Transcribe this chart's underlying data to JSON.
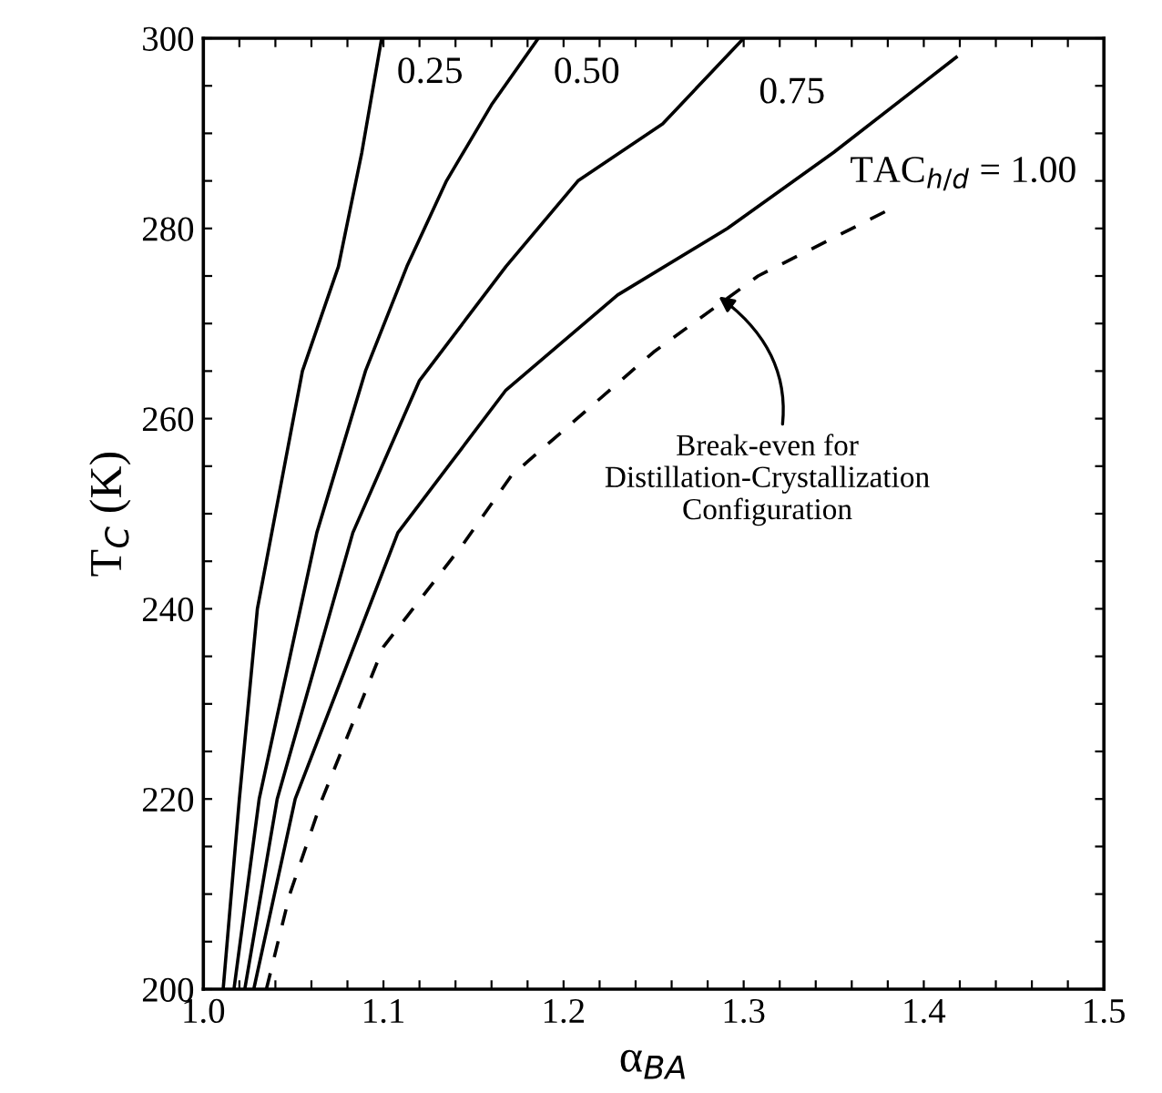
{
  "chart_data": {
    "type": "line",
    "xlabel": "α$_{BA}$",
    "ylabel": "T$_{C}$ (K)",
    "xlim": [
      1.0,
      1.5
    ],
    "ylim": [
      200,
      300
    ],
    "xticks": [
      {
        "value": 1.0,
        "label": "1.0"
      },
      {
        "value": 1.02,
        "label": null
      },
      {
        "value": 1.04,
        "label": null
      },
      {
        "value": 1.06,
        "label": null
      },
      {
        "value": 1.08,
        "label": null
      },
      {
        "value": 1.1,
        "label": "1.1"
      },
      {
        "value": 1.12,
        "label": null
      },
      {
        "value": 1.14,
        "label": null
      },
      {
        "value": 1.16,
        "label": null
      },
      {
        "value": 1.18,
        "label": null
      },
      {
        "value": 1.2,
        "label": "1.2"
      },
      {
        "value": 1.22,
        "label": null
      },
      {
        "value": 1.24,
        "label": null
      },
      {
        "value": 1.26,
        "label": null
      },
      {
        "value": 1.28,
        "label": null
      },
      {
        "value": 1.3,
        "label": "1.3"
      },
      {
        "value": 1.32,
        "label": null
      },
      {
        "value": 1.34,
        "label": null
      },
      {
        "value": 1.36,
        "label": null
      },
      {
        "value": 1.38,
        "label": null
      },
      {
        "value": 1.4,
        "label": "1.4"
      },
      {
        "value": 1.42,
        "label": null
      },
      {
        "value": 1.44,
        "label": null
      },
      {
        "value": 1.46,
        "label": null
      },
      {
        "value": 1.48,
        "label": null
      },
      {
        "value": 1.5,
        "label": "1.5"
      }
    ],
    "yticks": [
      200,
      {
        "value": 205,
        "label": null
      },
      {
        "value": 210,
        "label": null
      },
      {
        "value": 215,
        "label": null
      },
      220,
      {
        "value": 225,
        "label": null
      },
      {
        "value": 230,
        "label": null
      },
      {
        "value": 235,
        "label": null
      },
      240,
      {
        "value": 245,
        "label": null
      },
      {
        "value": 250,
        "label": null
      },
      {
        "value": 255,
        "label": null
      },
      260,
      {
        "value": 265,
        "label": null
      },
      {
        "value": 270,
        "label": null
      },
      {
        "value": 275,
        "label": null
      },
      280,
      {
        "value": 285,
        "label": null
      },
      {
        "value": 290,
        "label": null
      },
      {
        "value": 295,
        "label": null
      },
      300
    ],
    "grid": false,
    "legend": false,
    "marker": "none",
    "series": [
      {
        "color": "#000000",
        "line_style": "solid",
        "x": [
          1.011,
          1.02,
          1.03,
          1.035,
          1.055,
          1.075,
          1.088,
          1.099
        ],
        "values": [
          200,
          220,
          240,
          245,
          265,
          276,
          288,
          300
        ]
      },
      {
        "color": "#000000",
        "line_style": "solid",
        "x": [
          1.017,
          1.031,
          1.063,
          1.09,
          1.113,
          1.135,
          1.16,
          1.186
        ],
        "values": [
          200,
          220,
          248,
          265,
          276,
          285,
          293,
          300
        ]
      },
      {
        "color": "#000000",
        "line_style": "solid",
        "x": [
          1.023,
          1.041,
          1.083,
          1.12,
          1.168,
          1.208,
          1.255,
          1.3
        ],
        "values": [
          200,
          220,
          248,
          264,
          276,
          285,
          291,
          300
        ]
      },
      {
        "color": "#000000",
        "line_style": "solid",
        "x": [
          1.028,
          1.051,
          1.108,
          1.168,
          1.23,
          1.291,
          1.35,
          1.418
        ],
        "values": [
          200,
          220,
          248,
          263,
          273,
          280,
          288,
          298
        ]
      },
      {
        "color": "#000000",
        "line_style": "dashed",
        "x": [
          1.035,
          1.048,
          1.066,
          1.1,
          1.145,
          1.171,
          1.25,
          1.308,
          1.381
        ],
        "values": [
          200,
          210,
          220,
          236,
          247,
          254,
          267,
          275,
          282
        ]
      }
    ],
    "annotations": [
      {
        "text": "0.25",
        "x": 1.099,
        "y": 300
      },
      {
        "text": "0.50",
        "x": 1.186,
        "y": 300
      },
      {
        "text": "0.75",
        "x": 1.3,
        "y": 300
      },
      {
        "text": "TAC$_{h/d}$ = 1.00",
        "x": 1.418,
        "y": 298
      },
      {
        "text": "Break-even for\nDistillation-Crystallization\nConfiguration",
        "x": 1.285,
        "y": 273
      }
    ]
  }
}
